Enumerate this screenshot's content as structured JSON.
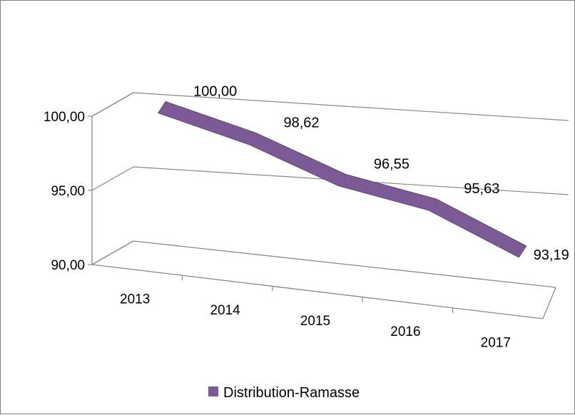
{
  "chart_data": {
    "type": "line",
    "style": "3d",
    "categories": [
      "2013",
      "2014",
      "2015",
      "2016",
      "2017"
    ],
    "series": [
      {
        "name": "Distribution-Ramasse",
        "values": [
          100.0,
          98.62,
          96.55,
          95.63,
          93.19
        ],
        "color": "#7b5a96"
      }
    ],
    "data_labels": [
      "100,00",
      "98,62",
      "96,55",
      "95,63",
      "93,19"
    ],
    "y_ticks": [
      {
        "value": 90,
        "label": "90,00"
      },
      {
        "value": 95,
        "label": "95,00"
      },
      {
        "value": 100,
        "label": "100,00"
      }
    ],
    "ylim": [
      90,
      100
    ],
    "grid": true,
    "legend": "bottom",
    "gridline_color": "#898989"
  }
}
